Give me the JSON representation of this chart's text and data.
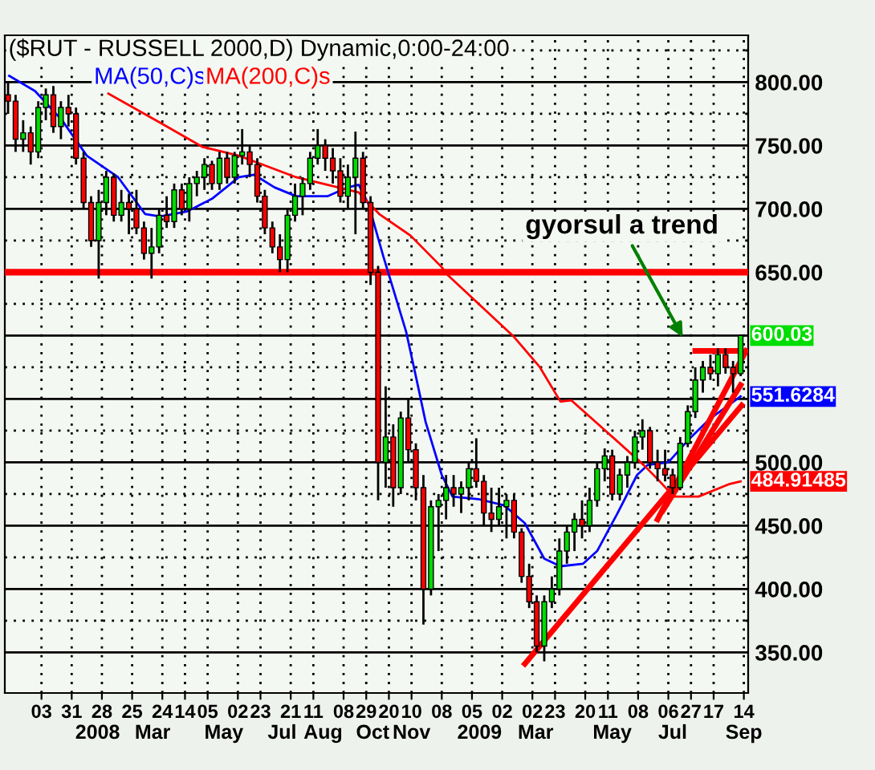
{
  "chart_data": {
    "type": "candlestick",
    "title": "($RUT - RUSSELL 2000,D) Dynamic,0:00-24:00",
    "x": [
      "2007-11-02",
      "2007-11-09",
      "2007-11-16",
      "2007-11-23",
      "2007-11-30",
      "2007-12-07",
      "2007-12-14",
      "2007-12-21",
      "2007-12-28",
      "2008-01-04",
      "2008-01-11",
      "2008-01-18",
      "2008-01-25",
      "2008-02-01",
      "2008-02-08",
      "2008-02-15",
      "2008-02-22",
      "2008-02-29",
      "2008-03-07",
      "2008-03-14",
      "2008-03-21",
      "2008-03-28",
      "2008-04-04",
      "2008-04-11",
      "2008-04-18",
      "2008-04-25",
      "2008-05-02",
      "2008-05-09",
      "2008-05-16",
      "2008-05-23",
      "2008-05-30",
      "2008-06-06",
      "2008-06-13",
      "2008-06-20",
      "2008-06-27",
      "2008-07-04",
      "2008-07-11",
      "2008-07-18",
      "2008-07-25",
      "2008-08-01",
      "2008-08-08",
      "2008-08-15",
      "2008-08-22",
      "2008-08-29",
      "2008-09-05",
      "2008-09-12",
      "2008-09-19",
      "2008-09-26",
      "2008-10-03",
      "2008-10-10",
      "2008-10-17",
      "2008-10-24",
      "2008-10-31",
      "2008-11-07",
      "2008-11-14",
      "2008-11-21",
      "2008-11-28",
      "2008-12-05",
      "2008-12-12",
      "2008-12-19",
      "2008-12-26",
      "2009-01-02",
      "2009-01-09",
      "2009-01-16",
      "2009-01-23",
      "2009-01-30",
      "2009-02-06",
      "2009-02-13",
      "2009-02-20",
      "2009-02-27",
      "2009-03-06",
      "2009-03-13",
      "2009-03-20",
      "2009-03-27",
      "2009-04-03",
      "2009-04-10",
      "2009-04-17",
      "2009-04-24",
      "2009-05-01",
      "2009-05-08",
      "2009-05-15",
      "2009-05-22",
      "2009-05-29",
      "2009-06-05",
      "2009-06-12",
      "2009-06-19",
      "2009-06-26",
      "2009-07-03",
      "2009-07-10",
      "2009-07-17",
      "2009-07-24",
      "2009-07-31",
      "2009-08-07",
      "2009-08-14",
      "2009-08-21",
      "2009-08-28",
      "2009-09-04",
      "2009-09-11"
    ],
    "ohlc": [
      [
        790,
        800,
        775,
        785
      ],
      [
        785,
        790,
        745,
        755
      ],
      [
        755,
        770,
        745,
        760
      ],
      [
        760,
        765,
        735,
        745
      ],
      [
        745,
        785,
        740,
        780
      ],
      [
        780,
        795,
        770,
        790
      ],
      [
        790,
        797,
        760,
        765
      ],
      [
        765,
        785,
        755,
        780
      ],
      [
        780,
        790,
        765,
        775
      ],
      [
        775,
        780,
        735,
        740
      ],
      [
        740,
        745,
        700,
        705
      ],
      [
        705,
        710,
        670,
        675
      ],
      [
        675,
        715,
        645,
        705
      ],
      [
        705,
        730,
        695,
        725
      ],
      [
        725,
        728,
        690,
        695
      ],
      [
        695,
        715,
        690,
        705
      ],
      [
        705,
        712,
        680,
        700
      ],
      [
        700,
        715,
        680,
        685
      ],
      [
        685,
        690,
        660,
        665
      ],
      [
        665,
        685,
        645,
        670
      ],
      [
        670,
        700,
        665,
        695
      ],
      [
        695,
        710,
        685,
        690
      ],
      [
        690,
        720,
        685,
        715
      ],
      [
        715,
        720,
        695,
        700
      ],
      [
        700,
        725,
        690,
        720
      ],
      [
        720,
        730,
        710,
        725
      ],
      [
        725,
        740,
        715,
        735
      ],
      [
        735,
        738,
        715,
        720
      ],
      [
        720,
        745,
        715,
        740
      ],
      [
        740,
        745,
        720,
        725
      ],
      [
        725,
        745,
        720,
        742
      ],
      [
        742,
        763,
        735,
        745
      ],
      [
        745,
        750,
        725,
        735
      ],
      [
        735,
        740,
        705,
        710
      ],
      [
        710,
        715,
        680,
        685
      ],
      [
        685,
        690,
        665,
        670
      ],
      [
        670,
        680,
        650,
        660
      ],
      [
        660,
        700,
        650,
        695
      ],
      [
        695,
        720,
        690,
        710
      ],
      [
        710,
        725,
        695,
        720
      ],
      [
        720,
        745,
        715,
        740
      ],
      [
        740,
        763,
        735,
        750
      ],
      [
        750,
        755,
        730,
        740
      ],
      [
        740,
        748,
        720,
        730
      ],
      [
        730,
        740,
        705,
        710
      ],
      [
        710,
        735,
        700,
        725
      ],
      [
        725,
        761,
        680,
        740
      ],
      [
        740,
        745,
        700,
        705
      ],
      [
        705,
        710,
        640,
        650
      ],
      [
        650,
        655,
        470,
        500
      ],
      [
        500,
        560,
        480,
        520
      ],
      [
        520,
        530,
        465,
        480
      ],
      [
        480,
        540,
        475,
        535
      ],
      [
        535,
        550,
        500,
        510
      ],
      [
        510,
        515,
        470,
        480
      ],
      [
        480,
        490,
        372,
        400
      ],
      [
        400,
        470,
        395,
        465
      ],
      [
        465,
        475,
        430,
        470
      ],
      [
        470,
        490,
        455,
        480
      ],
      [
        480,
        490,
        465,
        475
      ],
      [
        475,
        485,
        460,
        480
      ],
      [
        480,
        500,
        470,
        495
      ],
      [
        495,
        519,
        480,
        485
      ],
      [
        485,
        490,
        450,
        460
      ],
      [
        460,
        480,
        445,
        455
      ],
      [
        455,
        480,
        450,
        465
      ],
      [
        465,
        475,
        440,
        470
      ],
      [
        470,
        475,
        440,
        445
      ],
      [
        445,
        448,
        405,
        410
      ],
      [
        410,
        420,
        385,
        390
      ],
      [
        390,
        395,
        350,
        355
      ],
      [
        355,
        395,
        343,
        390
      ],
      [
        390,
        410,
        385,
        400
      ],
      [
        400,
        440,
        395,
        430
      ],
      [
        430,
        450,
        420,
        445
      ],
      [
        445,
        460,
        430,
        455
      ],
      [
        455,
        470,
        440,
        450
      ],
      [
        450,
        480,
        445,
        470
      ],
      [
        470,
        500,
        465,
        495
      ],
      [
        495,
        511,
        485,
        505
      ],
      [
        505,
        510,
        470,
        475
      ],
      [
        475,
        495,
        470,
        490
      ],
      [
        490,
        505,
        480,
        500
      ],
      [
        500,
        525,
        495,
        520
      ],
      [
        520,
        534,
        510,
        525
      ],
      [
        525,
        528,
        495,
        500
      ],
      [
        500,
        510,
        485,
        495
      ],
      [
        495,
        510,
        485,
        490
      ],
      [
        490,
        495,
        475,
        480
      ],
      [
        480,
        520,
        478,
        515
      ],
      [
        515,
        545,
        512,
        540
      ],
      [
        540,
        575,
        535,
        565
      ],
      [
        565,
        580,
        555,
        575
      ],
      [
        575,
        585,
        565,
        570
      ],
      [
        570,
        590,
        560,
        585
      ],
      [
        585,
        590,
        570,
        575
      ],
      [
        575,
        580,
        555,
        570
      ],
      [
        570,
        601,
        568,
        600.03
      ]
    ],
    "series": [
      {
        "type": "line",
        "name": "MA(50,C)s",
        "color": "#0000ff",
        "x": [
          "2007-11-03",
          "2007-11-27",
          "2007-12-22",
          "2008-01-14",
          "2008-02-12",
          "2008-03-08",
          "2008-03-22",
          "2008-04-16",
          "2008-05-09",
          "2008-06-03",
          "2008-06-17",
          "2008-07-06",
          "2008-07-26",
          "2008-08-24",
          "2008-09-12",
          "2008-09-22",
          "2008-10-01",
          "2008-10-15",
          "2008-11-05",
          "2008-11-16",
          "2008-11-23",
          "2008-12-08",
          "2008-12-18",
          "2009-01-11",
          "2009-02-04",
          "2009-02-23",
          "2009-03-13",
          "2009-03-28",
          "2009-04-18",
          "2009-05-01",
          "2009-05-20",
          "2009-06-07",
          "2009-06-17",
          "2009-07-06",
          "2009-07-26",
          "2009-08-13",
          "2009-09-11"
        ],
        "values": [
          805,
          793,
          770,
          742,
          725,
          696,
          694,
          698,
          708,
          725,
          727,
          717,
          710,
          710,
          717,
          719,
          704,
          662,
          603,
          560,
          532,
          490,
          473,
          471,
          466,
          452,
          424,
          418,
          420,
          430,
          460,
          490,
          498,
          500,
          519,
          534,
          552
        ]
      },
      {
        "type": "line",
        "name": "MA(200,C)s",
        "color": "#ff0000",
        "x": [
          "2008-02-03",
          "2008-03-22",
          "2008-04-30",
          "2008-06-03",
          "2008-06-28",
          "2008-07-26",
          "2008-08-24",
          "2008-09-22",
          "2008-10-11",
          "2008-11-09",
          "2008-12-08",
          "2008-12-12",
          "2009-02-13",
          "2009-03-09",
          "2009-03-28",
          "2009-04-07",
          "2009-05-10",
          "2009-06-13",
          "2009-06-27",
          "2009-07-11",
          "2009-08-03",
          "2009-09-01",
          "2009-09-11"
        ],
        "values": [
          791,
          768,
          749,
          742,
          734,
          725,
          719,
          713,
          696,
          679,
          654,
          649,
          599,
          575,
          548,
          549,
          524,
          498,
          486,
          473,
          473,
          483,
          485
        ]
      },
      {
        "type": "line",
        "color": "#ff0000",
        "x": [
          "2009-02-23",
          "2009-09-12"
        ],
        "values": [
          341,
          545
        ]
      },
      {
        "type": "line",
        "color": "#ff0000",
        "x": [
          "2009-06-26",
          "2009-09-16"
        ],
        "values": [
          455,
          588
        ]
      },
      {
        "type": "line",
        "color": "#ff0000",
        "x": [
          "2009-07-01",
          "2009-09-11"
        ],
        "values": [
          462,
          561
        ]
      },
      {
        "type": "line",
        "color": "#ff0000",
        "x": [
          "2009-07-31",
          "2009-09-11"
        ],
        "values": [
          588,
          588
        ]
      }
    ],
    "ref_lines": [
      {
        "axis": "y",
        "value": 650,
        "color": "#ff0000"
      }
    ],
    "annotations": [
      "gyorsul a trend",
      {
        "text": "600.03",
        "x": "2009-09-11",
        "y": 600.03
      },
      {
        "text": "551.6284",
        "x": "2009-09-11",
        "y": 552
      },
      {
        "text": "484.91485",
        "x": "2009-09-11",
        "y": 485
      }
    ],
    "xlim": [
      "2007-10-30",
      "2009-09-18"
    ],
    "xticks": [
      {
        "value": "2007-12-03",
        "label": "03"
      },
      {
        "value": "2007-12-31",
        "label": "31"
      },
      {
        "value": "2008-01-28",
        "label": "28"
      },
      {
        "value": "2008-02-25",
        "label": "25"
      },
      {
        "value": "2008-03-24",
        "label": "24"
      },
      {
        "value": "2008-04-14",
        "label": "14"
      },
      {
        "value": "2008-05-05",
        "label": "05"
      },
      {
        "value": "2008-06-02",
        "label": "02"
      },
      {
        "value": "2008-06-23",
        "label": "23"
      },
      {
        "value": "2008-07-21",
        "label": "21"
      },
      {
        "value": "2008-08-11",
        "label": "11"
      },
      {
        "value": "2008-09-08",
        "label": "08"
      },
      {
        "value": "2008-09-29",
        "label": "29"
      },
      {
        "value": "2008-10-20",
        "label": "20"
      },
      {
        "value": "2008-11-10",
        "label": "10"
      },
      {
        "value": "2008-12-08",
        "label": "08"
      },
      {
        "value": "2009-01-05",
        "label": "05"
      },
      {
        "value": "2009-02-02",
        "label": "02"
      },
      {
        "value": "2009-03-02",
        "label": "02"
      },
      {
        "value": "2009-03-23",
        "label": "23"
      },
      {
        "value": "2009-04-20",
        "label": "20"
      },
      {
        "value": "2009-05-11",
        "label": "11"
      },
      {
        "value": "2009-06-08",
        "label": "08"
      },
      {
        "value": "2009-07-06",
        "label": "06"
      },
      {
        "value": "2009-07-27",
        "label": "27"
      },
      {
        "value": "2009-08-17",
        "label": "17"
      },
      {
        "value": "2009-09-14",
        "label": "14"
      }
    ],
    "x2lim": [
      "2007-10-30",
      "2009-09-18"
    ],
    "x2ticks": [
      {
        "value": "2008-01-24",
        "label": "2008"
      },
      {
        "value": "2008-03-15",
        "label": "Mar"
      },
      {
        "value": "2008-05-20",
        "label": "May"
      },
      {
        "value": "2008-07-13",
        "label": "Jul"
      },
      {
        "value": "2008-08-20",
        "label": "Aug"
      },
      {
        "value": "2008-10-05",
        "label": "Oct"
      },
      {
        "value": "2008-11-10",
        "label": "Nov"
      },
      {
        "value": "2009-01-12",
        "label": "2009"
      },
      {
        "value": "2009-03-05",
        "label": "Mar"
      },
      {
        "value": "2009-05-15",
        "label": "May"
      },
      {
        "value": "2009-07-10",
        "label": "Jul"
      },
      {
        "value": "2009-09-14",
        "label": "Sep"
      }
    ],
    "ylim": [
      318,
      837
    ],
    "yticks": [
      {
        "value": 350,
        "label": "350.00"
      },
      {
        "value": 375,
        "label": null
      },
      {
        "value": 400,
        "label": "400.00"
      },
      {
        "value": 425,
        "label": null
      },
      {
        "value": 450,
        "label": "450.00"
      },
      {
        "value": 475,
        "label": null
      },
      {
        "value": 500,
        "label": "500.00"
      },
      {
        "value": 525,
        "label": null
      },
      {
        "value": 550,
        "label": null
      },
      {
        "value": 575,
        "label": null
      },
      {
        "value": 600,
        "label": null
      },
      {
        "value": 625,
        "label": null
      },
      {
        "value": 650,
        "label": "650.00"
      },
      {
        "value": 675,
        "label": null
      },
      {
        "value": 700,
        "label": "700.00"
      },
      {
        "value": 725,
        "label": null
      },
      {
        "value": 750,
        "label": "750.00"
      },
      {
        "value": 775,
        "label": null
      },
      {
        "value": 800,
        "label": "800.00"
      },
      {
        "value": 825,
        "label": null
      }
    ],
    "grid": true
  }
}
